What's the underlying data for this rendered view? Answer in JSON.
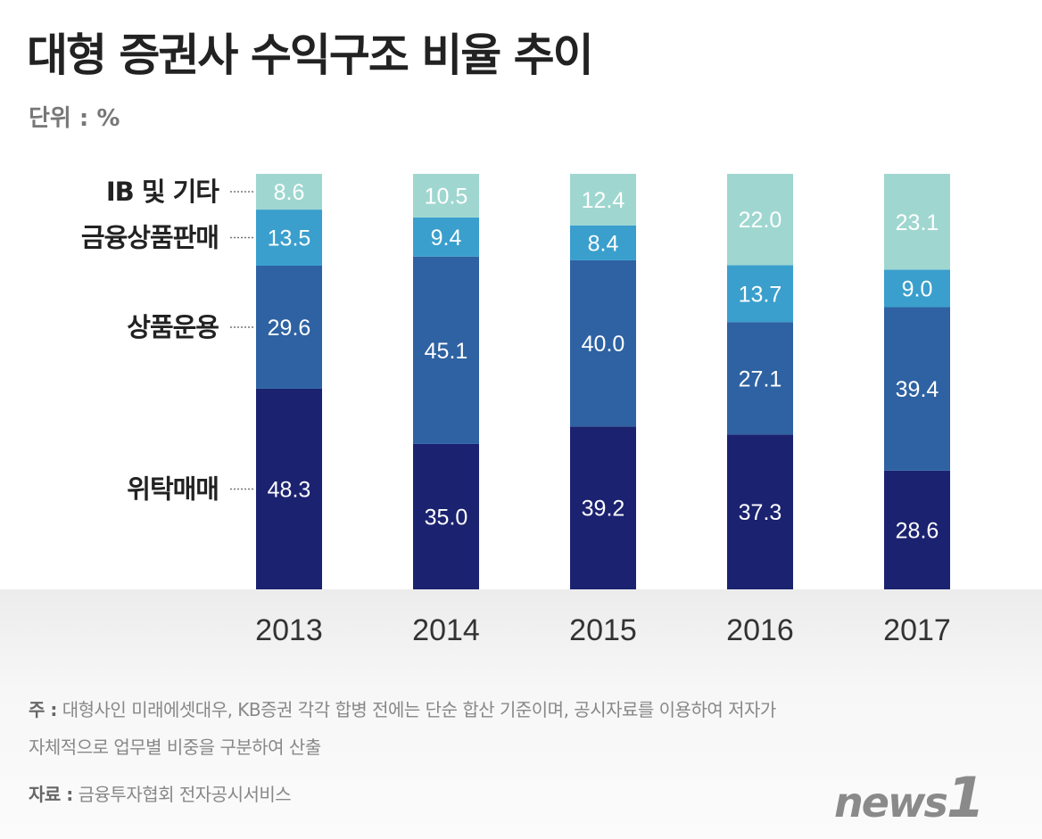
{
  "header": {
    "title": "대형 증권사 수익구조 비율 추이",
    "unit": "단위 : %"
  },
  "chart_data": {
    "type": "bar",
    "stacked": true,
    "title": "대형 증권사 수익구조 비율 추이",
    "ylabel": "단위 : %",
    "categories": [
      "2013",
      "2014",
      "2015",
      "2016",
      "2017"
    ],
    "series": [
      {
        "name": "위탁매매",
        "color": "#1b2270",
        "values": [
          48.3,
          35.0,
          39.2,
          37.3,
          28.6
        ]
      },
      {
        "name": "상품운용",
        "color": "#2e62a2",
        "values": [
          29.6,
          45.1,
          40.0,
          27.1,
          39.4
        ]
      },
      {
        "name": "금융상품판매",
        "color": "#3a9fcd",
        "values": [
          13.5,
          9.4,
          8.4,
          13.7,
          9.0
        ]
      },
      {
        "name": "IB 및 기타",
        "color": "#9fd7d0",
        "values": [
          8.6,
          10.5,
          12.4,
          22.0,
          23.1
        ]
      }
    ],
    "legend_placement": "left",
    "grid": false
  },
  "footer": {
    "note_label": "주 :",
    "note": "대형사인 미래에셋대우, KB증권 각각 합병 전에는 단순 합산 기준이며, 공시자료를 이용하여 저자가",
    "note2": "자체적으로 업무별 비중을 구분하여 산출",
    "source_label": "자료 :",
    "source": "금융투자협회 전자공시서비스",
    "logo": "news1"
  }
}
